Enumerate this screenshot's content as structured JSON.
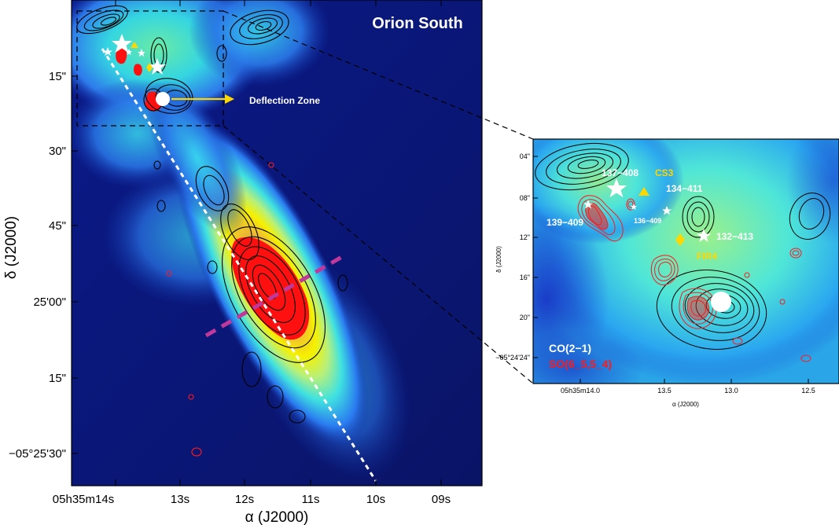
{
  "main_panel": {
    "title": "Orion South",
    "annotation": "Deflection Zone",
    "xlabel": "α (J2000)",
    "ylabel": "δ (J2000)",
    "xticks": [
      "05h35m14s",
      "13s",
      "12s",
      "11s",
      "10s",
      "09s"
    ],
    "yticks": [
      "15\"",
      "30\"",
      "45\"",
      "25'00\"",
      "15\"",
      "−05°25'30\""
    ]
  },
  "inset_panel": {
    "xlabel": "α (J2000)",
    "ylabel": "δ (J2000)",
    "xticks": [
      "05h35m14.0",
      "13.5",
      "13.0",
      "12.5"
    ],
    "yticks": [
      "04\"",
      "08\"",
      "12\"",
      "16\"",
      "20\"",
      "−05°24'24\""
    ],
    "labels": {
      "src_137_408": "137−408",
      "cs3": "CS3",
      "src_134_411": "134−411",
      "src_139_409": "139−409",
      "src_136_409": "136−409",
      "src_132_413": "132−413",
      "fir4": "FIR4"
    },
    "legend": [
      {
        "label": "CO(2−1)",
        "color": "#ffffff"
      },
      {
        "label": "SO(6_5,5_4)",
        "color": "#ff1a1a"
      }
    ]
  },
  "colors": {
    "star": "#ffffff",
    "cs3": "#ffd700",
    "fir4": "#ffd700",
    "arrow": "#ffd700",
    "jet_axis": "#ffffff",
    "cut_line": "#c0389a",
    "co_contour": "#000000",
    "so_contour": "#ff1a1a"
  }
}
